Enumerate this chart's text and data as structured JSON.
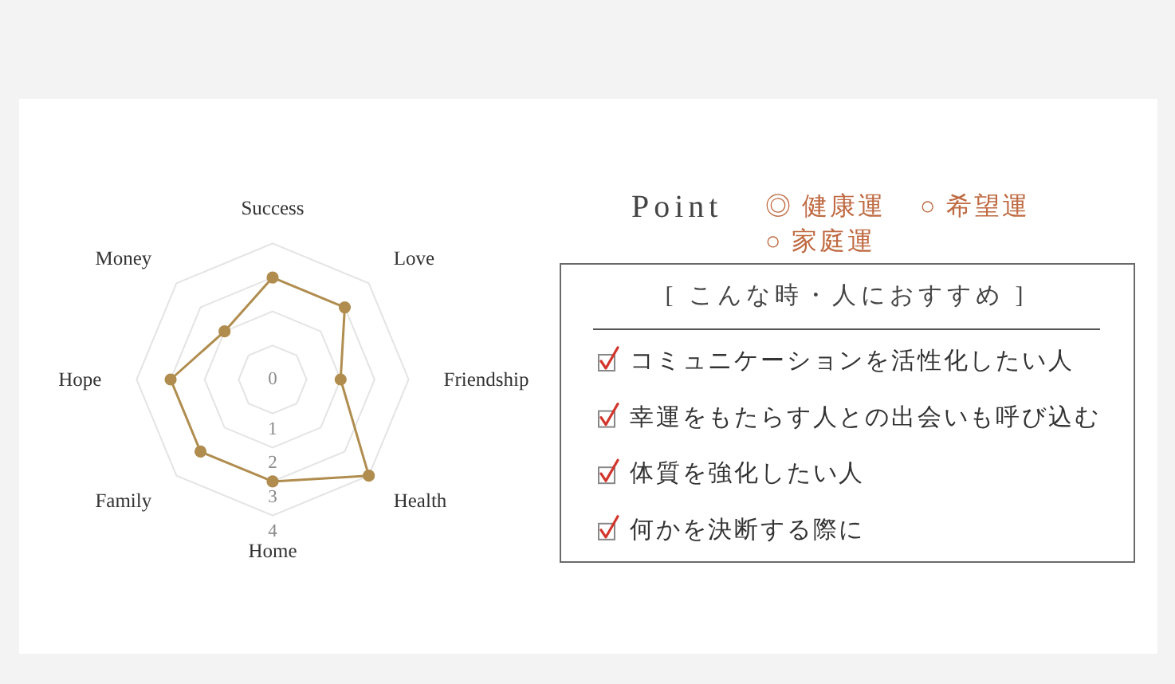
{
  "chart_data": [
    {
      "type": "radar",
      "categories": [
        "Success",
        "Love",
        "Friendship",
        "Health",
        "Home",
        "Family",
        "Hope",
        "Money"
      ],
      "ylim": [
        0,
        4
      ],
      "yticks": [
        0,
        1,
        2,
        3,
        4
      ],
      "grid": true,
      "marker": "circle",
      "series": [
        {
          "color": "#b08d4f",
          "values": [
            3,
            3,
            2,
            4,
            3,
            3,
            3,
            2
          ]
        }
      ]
    },
    {
      "type": "other",
      "title": "Point",
      "categories": [
        "◎ 健康運",
        "○ 希望運",
        "○ 家庭運"
      ],
      "subtitle": "[ こんな時・人におすすめ ]",
      "annotations": [
        "コミュニケーションを活性化したい人",
        "幸運をもたらす人との出会いも呼び込む",
        "体質を強化したい人",
        "何かを決断する際に"
      ]
    }
  ]
}
